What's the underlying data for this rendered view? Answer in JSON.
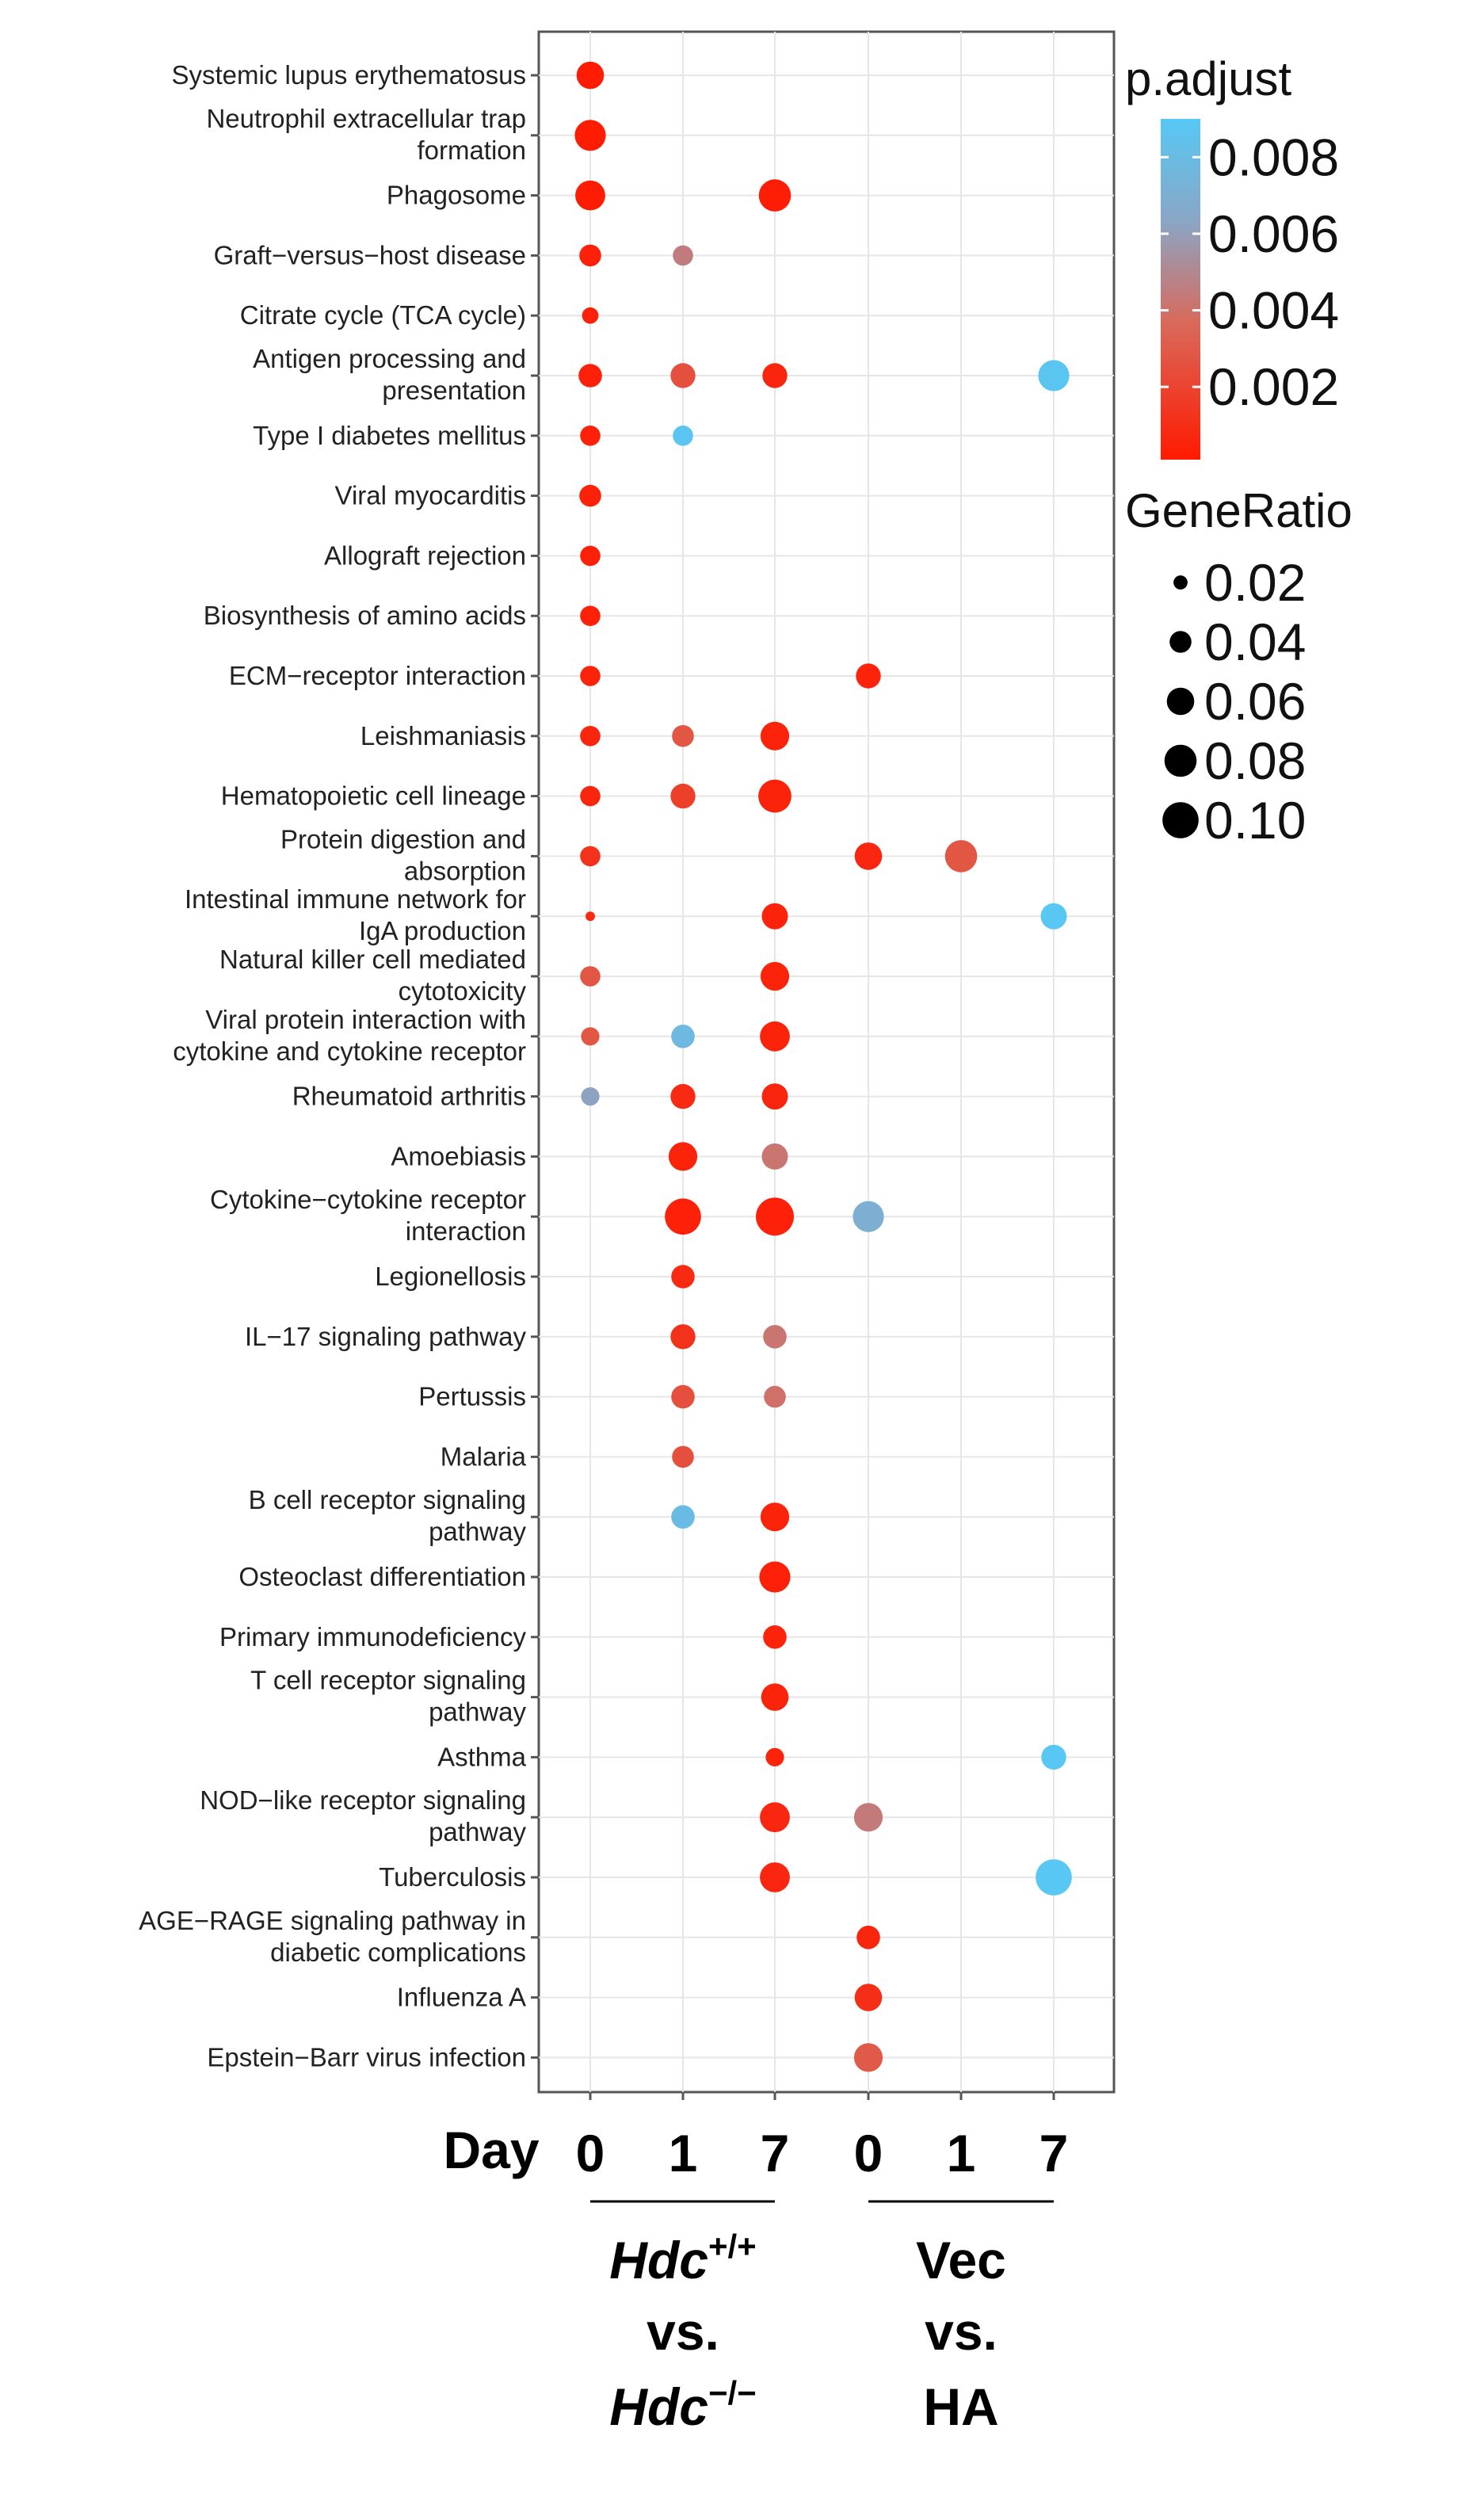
{
  "chart_data": {
    "type": "scatter",
    "x_title": "Day",
    "x_columns": [
      "0",
      "1",
      "7",
      "0",
      "1",
      "7"
    ],
    "groups": [
      {
        "name": "Hdc+/+ vs. Hdc−/−",
        "line1_base": "Hdc",
        "line1_sup": "+/+",
        "line2": "vs.",
        "line3_base": "Hdc",
        "line3_sup": "−/−"
      },
      {
        "name": "Vec vs. HA",
        "line1": "Vec",
        "line2": "vs.",
        "line3": "HA"
      }
    ],
    "categories": [
      [
        "Systemic lupus erythematosus"
      ],
      [
        "Neutrophil extracellular trap",
        "formation"
      ],
      [
        "Phagosome"
      ],
      [
        "Graft−versus−host disease"
      ],
      [
        "Citrate cycle (TCA cycle)"
      ],
      [
        "Antigen processing and",
        "presentation"
      ],
      [
        "Type I diabetes mellitus"
      ],
      [
        "Viral myocarditis"
      ],
      [
        "Allograft rejection"
      ],
      [
        "Biosynthesis of amino acids"
      ],
      [
        "ECM−receptor interaction"
      ],
      [
        "Leishmaniasis"
      ],
      [
        "Hematopoietic cell lineage"
      ],
      [
        "Protein digestion and",
        "absorption"
      ],
      [
        "Intestinal immune network for",
        "IgA production"
      ],
      [
        "Natural killer cell mediated",
        "cytotoxicity"
      ],
      [
        "Viral protein interaction with",
        "cytokine and cytokine receptor"
      ],
      [
        "Rheumatoid arthritis"
      ],
      [
        "Amoebiasis"
      ],
      [
        "Cytokine−cytokine receptor",
        "interaction"
      ],
      [
        "Legionellosis"
      ],
      [
        "IL−17 signaling pathway"
      ],
      [
        "Pertussis"
      ],
      [
        "Malaria"
      ],
      [
        "B cell receptor signaling",
        "pathway"
      ],
      [
        "Osteoclast differentiation"
      ],
      [
        "Primary immunodeficiency"
      ],
      [
        "T cell receptor signaling",
        "pathway"
      ],
      [
        "Asthma"
      ],
      [
        "NOD−like receptor signaling",
        "pathway"
      ],
      [
        "Tuberculosis"
      ],
      [
        "AGE−RAGE signaling pathway in",
        "diabetic complications"
      ],
      [
        "Influenza A"
      ],
      [
        "Epstein−Barr virus infection"
      ]
    ],
    "points": [
      {
        "row": 0,
        "col": 0,
        "gene_ratio": 0.06,
        "p_adjust": 0.0002
      },
      {
        "row": 1,
        "col": 0,
        "gene_ratio": 0.075,
        "p_adjust": 0.0002
      },
      {
        "row": 2,
        "col": 0,
        "gene_ratio": 0.07,
        "p_adjust": 0.0002
      },
      {
        "row": 2,
        "col": 2,
        "gene_ratio": 0.08,
        "p_adjust": 0.0003
      },
      {
        "row": 3,
        "col": 0,
        "gene_ratio": 0.04,
        "p_adjust": 0.0004
      },
      {
        "row": 3,
        "col": 1,
        "gene_ratio": 0.035,
        "p_adjust": 0.0045
      },
      {
        "row": 4,
        "col": 0,
        "gene_ratio": 0.025,
        "p_adjust": 0.0004
      },
      {
        "row": 5,
        "col": 0,
        "gene_ratio": 0.045,
        "p_adjust": 0.0004
      },
      {
        "row": 5,
        "col": 1,
        "gene_ratio": 0.05,
        "p_adjust": 0.0025
      },
      {
        "row": 5,
        "col": 2,
        "gene_ratio": 0.05,
        "p_adjust": 0.0006
      },
      {
        "row": 5,
        "col": 5,
        "gene_ratio": 0.075,
        "p_adjust": 0.0088
      },
      {
        "row": 6,
        "col": 0,
        "gene_ratio": 0.035,
        "p_adjust": 0.0004
      },
      {
        "row": 6,
        "col": 1,
        "gene_ratio": 0.035,
        "p_adjust": 0.0088
      },
      {
        "row": 7,
        "col": 0,
        "gene_ratio": 0.04,
        "p_adjust": 0.0004
      },
      {
        "row": 8,
        "col": 0,
        "gene_ratio": 0.035,
        "p_adjust": 0.0004
      },
      {
        "row": 9,
        "col": 0,
        "gene_ratio": 0.035,
        "p_adjust": 0.0004
      },
      {
        "row": 10,
        "col": 0,
        "gene_ratio": 0.035,
        "p_adjust": 0.0005
      },
      {
        "row": 10,
        "col": 3,
        "gene_ratio": 0.05,
        "p_adjust": 0.0005
      },
      {
        "row": 11,
        "col": 0,
        "gene_ratio": 0.035,
        "p_adjust": 0.0006
      },
      {
        "row": 11,
        "col": 1,
        "gene_ratio": 0.04,
        "p_adjust": 0.0028
      },
      {
        "row": 11,
        "col": 2,
        "gene_ratio": 0.065,
        "p_adjust": 0.0005
      },
      {
        "row": 12,
        "col": 0,
        "gene_ratio": 0.035,
        "p_adjust": 0.0006
      },
      {
        "row": 12,
        "col": 1,
        "gene_ratio": 0.05,
        "p_adjust": 0.0018
      },
      {
        "row": 12,
        "col": 2,
        "gene_ratio": 0.085,
        "p_adjust": 0.0005
      },
      {
        "row": 13,
        "col": 0,
        "gene_ratio": 0.035,
        "p_adjust": 0.0012
      },
      {
        "row": 13,
        "col": 3,
        "gene_ratio": 0.06,
        "p_adjust": 0.0007
      },
      {
        "row": 13,
        "col": 4,
        "gene_ratio": 0.08,
        "p_adjust": 0.0028
      },
      {
        "row": 14,
        "col": 0,
        "gene_ratio": 0.012,
        "p_adjust": 0.0008
      },
      {
        "row": 14,
        "col": 2,
        "gene_ratio": 0.055,
        "p_adjust": 0.0005
      },
      {
        "row": 14,
        "col": 5,
        "gene_ratio": 0.055,
        "p_adjust": 0.0089
      },
      {
        "row": 15,
        "col": 0,
        "gene_ratio": 0.035,
        "p_adjust": 0.0028
      },
      {
        "row": 15,
        "col": 2,
        "gene_ratio": 0.065,
        "p_adjust": 0.0005
      },
      {
        "row": 16,
        "col": 0,
        "gene_ratio": 0.03,
        "p_adjust": 0.0028
      },
      {
        "row": 16,
        "col": 1,
        "gene_ratio": 0.045,
        "p_adjust": 0.0078
      },
      {
        "row": 16,
        "col": 2,
        "gene_ratio": 0.07,
        "p_adjust": 0.0005
      },
      {
        "row": 17,
        "col": 0,
        "gene_ratio": 0.03,
        "p_adjust": 0.0062
      },
      {
        "row": 17,
        "col": 1,
        "gene_ratio": 0.05,
        "p_adjust": 0.0008
      },
      {
        "row": 17,
        "col": 2,
        "gene_ratio": 0.055,
        "p_adjust": 0.0006
      },
      {
        "row": 18,
        "col": 1,
        "gene_ratio": 0.065,
        "p_adjust": 0.0005
      },
      {
        "row": 18,
        "col": 2,
        "gene_ratio": 0.055,
        "p_adjust": 0.0042
      },
      {
        "row": 19,
        "col": 1,
        "gene_ratio": 0.1,
        "p_adjust": 0.0004
      },
      {
        "row": 19,
        "col": 2,
        "gene_ratio": 0.11,
        "p_adjust": 0.0004
      },
      {
        "row": 19,
        "col": 3,
        "gene_ratio": 0.075,
        "p_adjust": 0.007
      },
      {
        "row": 20,
        "col": 1,
        "gene_ratio": 0.045,
        "p_adjust": 0.0008
      },
      {
        "row": 21,
        "col": 1,
        "gene_ratio": 0.05,
        "p_adjust": 0.0012
      },
      {
        "row": 21,
        "col": 2,
        "gene_ratio": 0.045,
        "p_adjust": 0.0042
      },
      {
        "row": 22,
        "col": 1,
        "gene_ratio": 0.045,
        "p_adjust": 0.0025
      },
      {
        "row": 22,
        "col": 2,
        "gene_ratio": 0.04,
        "p_adjust": 0.004
      },
      {
        "row": 23,
        "col": 1,
        "gene_ratio": 0.04,
        "p_adjust": 0.0025
      },
      {
        "row": 24,
        "col": 1,
        "gene_ratio": 0.045,
        "p_adjust": 0.008
      },
      {
        "row": 24,
        "col": 2,
        "gene_ratio": 0.065,
        "p_adjust": 0.0005
      },
      {
        "row": 25,
        "col": 2,
        "gene_ratio": 0.075,
        "p_adjust": 0.0004
      },
      {
        "row": 26,
        "col": 2,
        "gene_ratio": 0.045,
        "p_adjust": 0.0005
      },
      {
        "row": 27,
        "col": 2,
        "gene_ratio": 0.06,
        "p_adjust": 0.0005
      },
      {
        "row": 28,
        "col": 2,
        "gene_ratio": 0.03,
        "p_adjust": 0.0005
      },
      {
        "row": 28,
        "col": 5,
        "gene_ratio": 0.05,
        "p_adjust": 0.0089
      },
      {
        "row": 29,
        "col": 2,
        "gene_ratio": 0.07,
        "p_adjust": 0.0007
      },
      {
        "row": 29,
        "col": 3,
        "gene_ratio": 0.065,
        "p_adjust": 0.0044
      },
      {
        "row": 30,
        "col": 2,
        "gene_ratio": 0.07,
        "p_adjust": 0.0007
      },
      {
        "row": 30,
        "col": 5,
        "gene_ratio": 0.1,
        "p_adjust": 0.0089
      },
      {
        "row": 31,
        "col": 3,
        "gene_ratio": 0.045,
        "p_adjust": 0.0006
      },
      {
        "row": 32,
        "col": 3,
        "gene_ratio": 0.06,
        "p_adjust": 0.001
      },
      {
        "row": 33,
        "col": 3,
        "gene_ratio": 0.065,
        "p_adjust": 0.003
      }
    ],
    "color_legend": {
      "title": "p.adjust",
      "ticks": [
        0.008,
        0.006,
        0.004,
        0.002
      ],
      "tick_labels": [
        "0.008",
        "0.006",
        "0.004",
        "0.002"
      ],
      "range": [
        0.0001,
        0.009
      ],
      "low_color": "#ff1a00",
      "high_color": "#56c8f5"
    },
    "size_legend": {
      "title": "GeneRatio",
      "values": [
        0.02,
        0.04,
        0.06,
        0.08,
        0.1
      ],
      "labels": [
        "0.02",
        "0.04",
        "0.06",
        "0.08",
        "0.10"
      ]
    },
    "size_range": [
      0.01,
      0.11
    ],
    "grid": true
  }
}
